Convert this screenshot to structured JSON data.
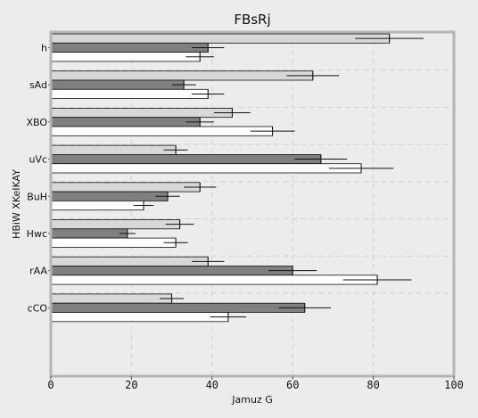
{
  "chart_data": {
    "type": "bar",
    "orientation": "horizontal",
    "title": "FBsRj",
    "xlabel": "Jamuz G",
    "ylabel": "HBiW XKeIKAY",
    "xlim": [
      0,
      100
    ],
    "xticks": [
      0,
      20,
      40,
      60,
      80,
      100
    ],
    "grid": true,
    "legend": "none",
    "categories": [
      "h",
      "sAd",
      "XBO",
      "uVc",
      "BuH",
      "Hwc",
      "rAA",
      "cCO"
    ],
    "series": [
      {
        "color": "#d8d8d8",
        "values": [
          84,
          65,
          45,
          31,
          37,
          32,
          39,
          30
        ],
        "errors": [
          8.5,
          6.5,
          4.5,
          3,
          4,
          3.5,
          4,
          3
        ]
      },
      {
        "color": "#808080",
        "values": [
          39,
          33,
          37,
          67,
          29,
          19,
          60,
          63
        ],
        "errors": [
          4,
          3,
          3.5,
          6.5,
          3,
          2,
          6,
          6.5
        ]
      },
      {
        "color": "#ffffff",
        "values": [
          37,
          39,
          55,
          77,
          23,
          31,
          81,
          44
        ],
        "errors": [
          3.5,
          4,
          5.5,
          8,
          2.5,
          3,
          8.5,
          4.5
        ]
      }
    ]
  }
}
